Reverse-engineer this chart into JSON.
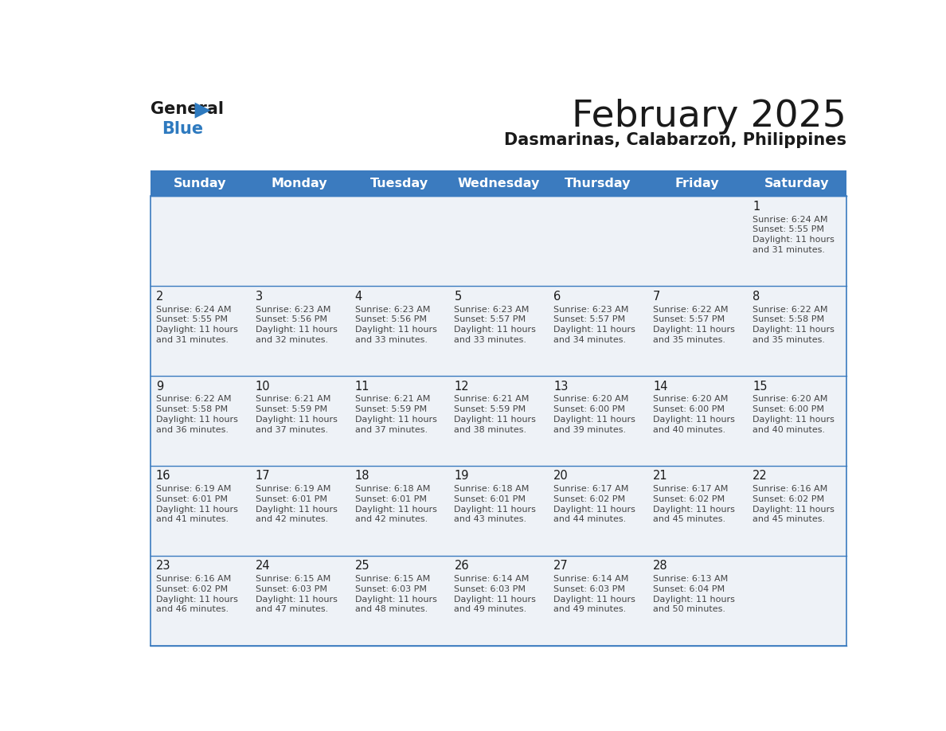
{
  "title": "February 2025",
  "subtitle": "Dasmarinas, Calabarzon, Philippines",
  "header_bg_color": "#3b7bbf",
  "header_text_color": "#ffffff",
  "cell_bg_color": "#eef2f7",
  "text_color": "#333333",
  "border_color": "#3b7bbf",
  "days_of_week": [
    "Sunday",
    "Monday",
    "Tuesday",
    "Wednesday",
    "Thursday",
    "Friday",
    "Saturday"
  ],
  "calendar_data": [
    [
      null,
      null,
      null,
      null,
      null,
      null,
      {
        "day": "1",
        "sunrise": "6:24 AM",
        "sunset": "5:55 PM",
        "daylight_l1": "11 hours",
        "daylight_l2": "and 31 minutes."
      }
    ],
    [
      {
        "day": "2",
        "sunrise": "6:24 AM",
        "sunset": "5:55 PM",
        "daylight_l1": "11 hours",
        "daylight_l2": "and 31 minutes."
      },
      {
        "day": "3",
        "sunrise": "6:23 AM",
        "sunset": "5:56 PM",
        "daylight_l1": "11 hours",
        "daylight_l2": "and 32 minutes."
      },
      {
        "day": "4",
        "sunrise": "6:23 AM",
        "sunset": "5:56 PM",
        "daylight_l1": "11 hours",
        "daylight_l2": "and 33 minutes."
      },
      {
        "day": "5",
        "sunrise": "6:23 AM",
        "sunset": "5:57 PM",
        "daylight_l1": "11 hours",
        "daylight_l2": "and 33 minutes."
      },
      {
        "day": "6",
        "sunrise": "6:23 AM",
        "sunset": "5:57 PM",
        "daylight_l1": "11 hours",
        "daylight_l2": "and 34 minutes."
      },
      {
        "day": "7",
        "sunrise": "6:22 AM",
        "sunset": "5:57 PM",
        "daylight_l1": "11 hours",
        "daylight_l2": "and 35 minutes."
      },
      {
        "day": "8",
        "sunrise": "6:22 AM",
        "sunset": "5:58 PM",
        "daylight_l1": "11 hours",
        "daylight_l2": "and 35 minutes."
      }
    ],
    [
      {
        "day": "9",
        "sunrise": "6:22 AM",
        "sunset": "5:58 PM",
        "daylight_l1": "11 hours",
        "daylight_l2": "and 36 minutes."
      },
      {
        "day": "10",
        "sunrise": "6:21 AM",
        "sunset": "5:59 PM",
        "daylight_l1": "11 hours",
        "daylight_l2": "and 37 minutes."
      },
      {
        "day": "11",
        "sunrise": "6:21 AM",
        "sunset": "5:59 PM",
        "daylight_l1": "11 hours",
        "daylight_l2": "and 37 minutes."
      },
      {
        "day": "12",
        "sunrise": "6:21 AM",
        "sunset": "5:59 PM",
        "daylight_l1": "11 hours",
        "daylight_l2": "and 38 minutes."
      },
      {
        "day": "13",
        "sunrise": "6:20 AM",
        "sunset": "6:00 PM",
        "daylight_l1": "11 hours",
        "daylight_l2": "and 39 minutes."
      },
      {
        "day": "14",
        "sunrise": "6:20 AM",
        "sunset": "6:00 PM",
        "daylight_l1": "11 hours",
        "daylight_l2": "and 40 minutes."
      },
      {
        "day": "15",
        "sunrise": "6:20 AM",
        "sunset": "6:00 PM",
        "daylight_l1": "11 hours",
        "daylight_l2": "and 40 minutes."
      }
    ],
    [
      {
        "day": "16",
        "sunrise": "6:19 AM",
        "sunset": "6:01 PM",
        "daylight_l1": "11 hours",
        "daylight_l2": "and 41 minutes."
      },
      {
        "day": "17",
        "sunrise": "6:19 AM",
        "sunset": "6:01 PM",
        "daylight_l1": "11 hours",
        "daylight_l2": "and 42 minutes."
      },
      {
        "day": "18",
        "sunrise": "6:18 AM",
        "sunset": "6:01 PM",
        "daylight_l1": "11 hours",
        "daylight_l2": "and 42 minutes."
      },
      {
        "day": "19",
        "sunrise": "6:18 AM",
        "sunset": "6:01 PM",
        "daylight_l1": "11 hours",
        "daylight_l2": "and 43 minutes."
      },
      {
        "day": "20",
        "sunrise": "6:17 AM",
        "sunset": "6:02 PM",
        "daylight_l1": "11 hours",
        "daylight_l2": "and 44 minutes."
      },
      {
        "day": "21",
        "sunrise": "6:17 AM",
        "sunset": "6:02 PM",
        "daylight_l1": "11 hours",
        "daylight_l2": "and 45 minutes."
      },
      {
        "day": "22",
        "sunrise": "6:16 AM",
        "sunset": "6:02 PM",
        "daylight_l1": "11 hours",
        "daylight_l2": "and 45 minutes."
      }
    ],
    [
      {
        "day": "23",
        "sunrise": "6:16 AM",
        "sunset": "6:02 PM",
        "daylight_l1": "11 hours",
        "daylight_l2": "and 46 minutes."
      },
      {
        "day": "24",
        "sunrise": "6:15 AM",
        "sunset": "6:03 PM",
        "daylight_l1": "11 hours",
        "daylight_l2": "and 47 minutes."
      },
      {
        "day": "25",
        "sunrise": "6:15 AM",
        "sunset": "6:03 PM",
        "daylight_l1": "11 hours",
        "daylight_l2": "and 48 minutes."
      },
      {
        "day": "26",
        "sunrise": "6:14 AM",
        "sunset": "6:03 PM",
        "daylight_l1": "11 hours",
        "daylight_l2": "and 49 minutes."
      },
      {
        "day": "27",
        "sunrise": "6:14 AM",
        "sunset": "6:03 PM",
        "daylight_l1": "11 hours",
        "daylight_l2": "and 49 minutes."
      },
      {
        "day": "28",
        "sunrise": "6:13 AM",
        "sunset": "6:04 PM",
        "daylight_l1": "11 hours",
        "daylight_l2": "and 50 minutes."
      },
      null
    ]
  ]
}
